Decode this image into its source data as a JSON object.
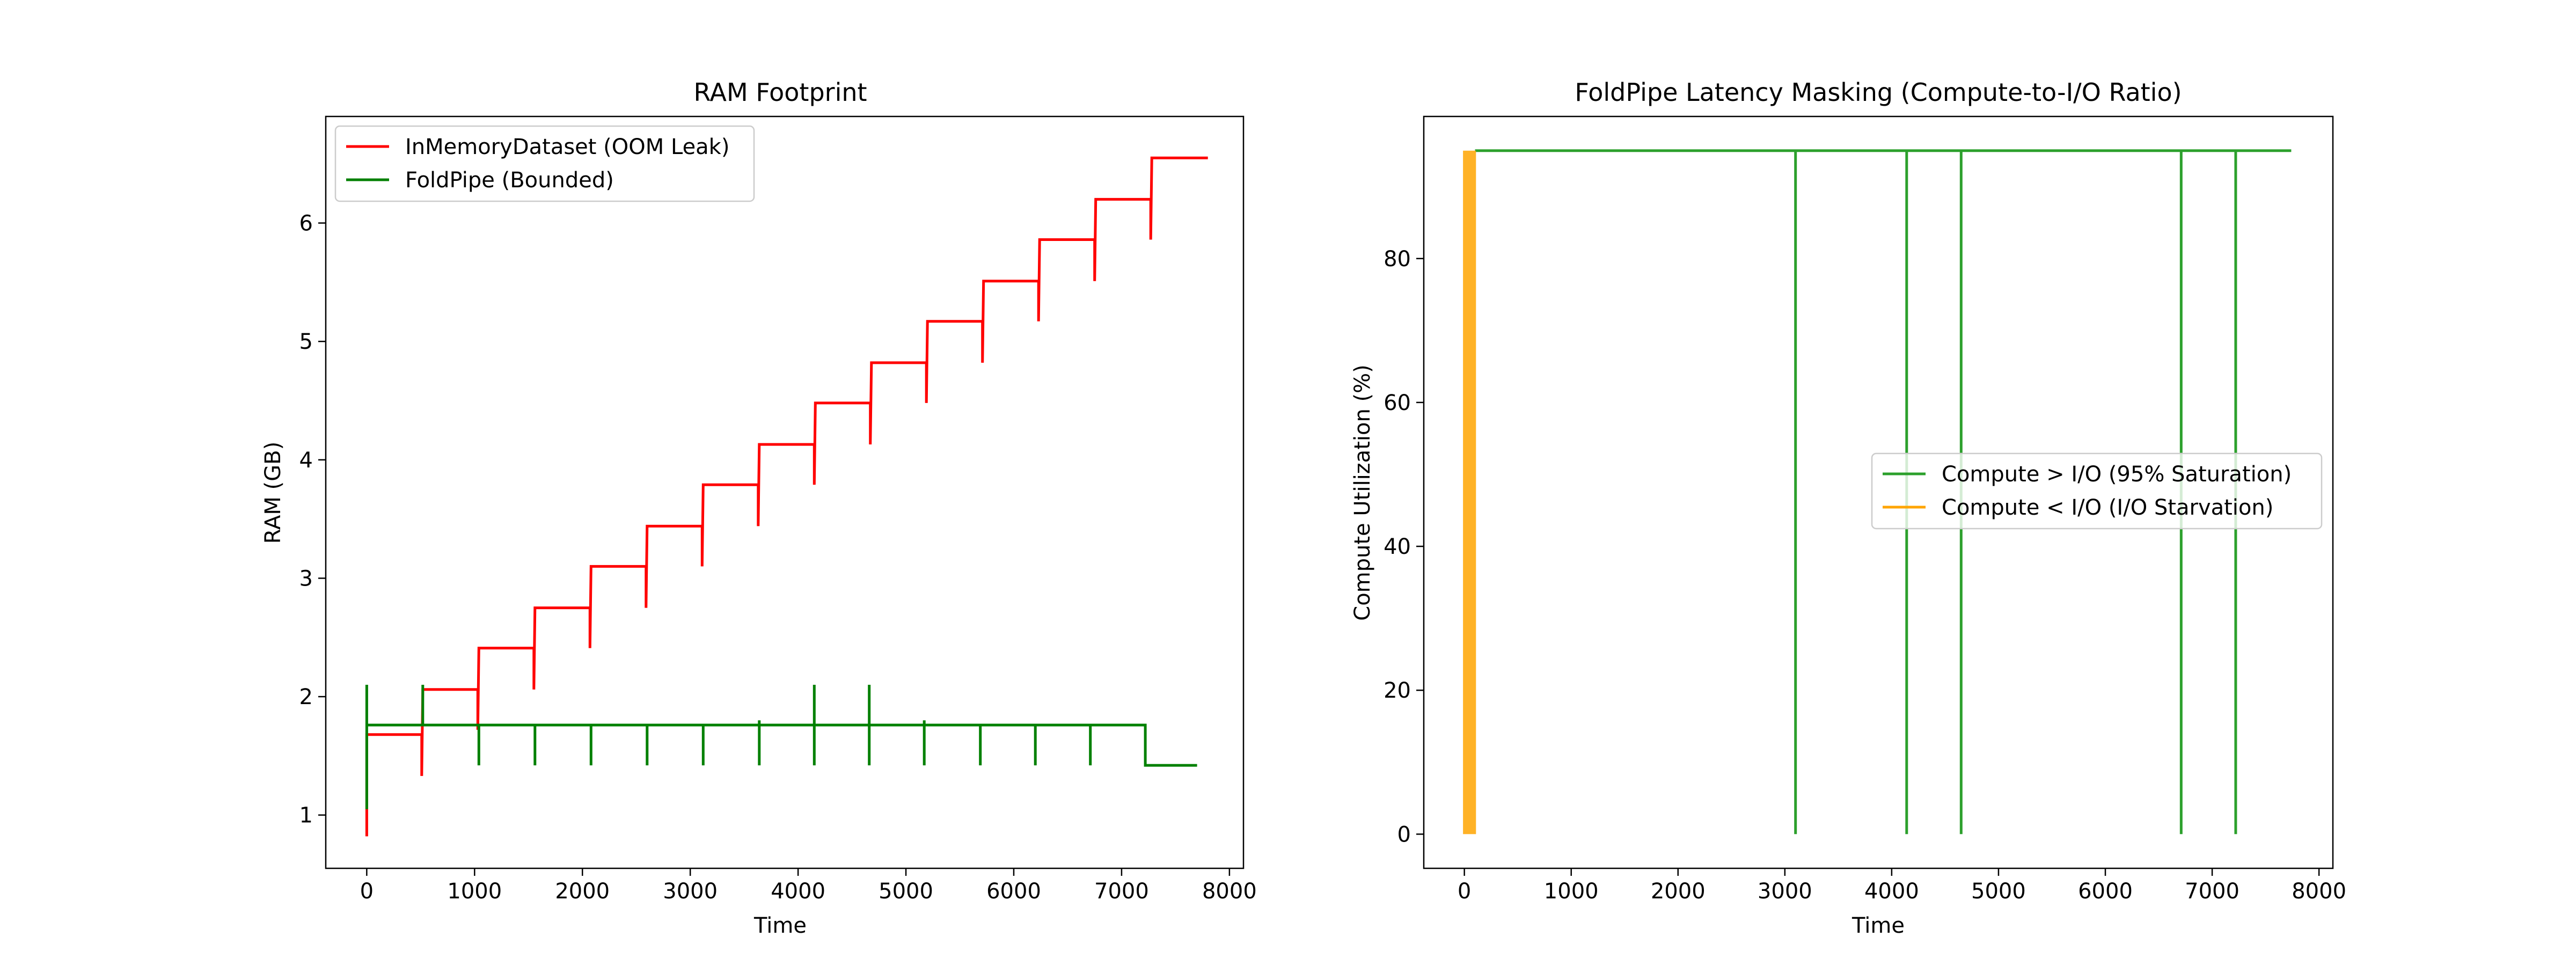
{
  "chart_data": [
    {
      "type": "line",
      "title": "RAM Footprint",
      "xlabel": "Time",
      "ylabel": "RAM (GB)",
      "xlim": [
        -380,
        8130
      ],
      "ylim": [
        0.55,
        6.9
      ],
      "xticks": [
        "0",
        "1000",
        "2000",
        "3000",
        "4000",
        "5000",
        "6000",
        "7000",
        "8000"
      ],
      "yticks": [
        "1",
        "2",
        "3",
        "4",
        "5",
        "6"
      ],
      "legend_position": "upper left",
      "grid": false,
      "series": [
        {
          "name": "InMemoryDataset (OOM Leak)",
          "color": "#ff0000",
          "points": [
            [
              0,
              0.82
            ],
            [
              0,
              1.68
            ],
            [
              510,
              1.68
            ],
            [
              510,
              1.33
            ],
            [
              520,
              2.06
            ],
            [
              1030,
              2.06
            ],
            [
              1030,
              1.72
            ],
            [
              1040,
              2.41
            ],
            [
              1550,
              2.41
            ],
            [
              1550,
              2.06
            ],
            [
              1560,
              2.75
            ],
            [
              2070,
              2.75
            ],
            [
              2070,
              2.41
            ],
            [
              2080,
              3.1
            ],
            [
              2590,
              3.1
            ],
            [
              2590,
              2.75
            ],
            [
              2600,
              3.44
            ],
            [
              3110,
              3.44
            ],
            [
              3110,
              3.1
            ],
            [
              3120,
              3.79
            ],
            [
              3630,
              3.79
            ],
            [
              3630,
              3.44
            ],
            [
              3640,
              4.13
            ],
            [
              4150,
              4.13
            ],
            [
              4150,
              3.79
            ],
            [
              4160,
              4.48
            ],
            [
              4670,
              4.48
            ],
            [
              4670,
              4.13
            ],
            [
              4680,
              4.82
            ],
            [
              5190,
              4.82
            ],
            [
              5190,
              4.48
            ],
            [
              5200,
              5.17
            ],
            [
              5710,
              5.17
            ],
            [
              5710,
              4.82
            ],
            [
              5720,
              5.51
            ],
            [
              6230,
              5.51
            ],
            [
              6230,
              5.17
            ],
            [
              6240,
              5.86
            ],
            [
              6750,
              5.86
            ],
            [
              6750,
              5.51
            ],
            [
              6760,
              6.2
            ],
            [
              7270,
              6.2
            ],
            [
              7270,
              5.86
            ],
            [
              7280,
              6.55
            ],
            [
              7800,
              6.55
            ]
          ]
        },
        {
          "name": "FoldPipe (Bounded)",
          "color": "#008000",
          "points": [
            [
              0,
              1.05
            ],
            [
              0,
              2.1
            ],
            [
              0,
              1.76
            ],
            [
              520,
              1.76
            ],
            [
              520,
              2.1
            ],
            [
              520,
              1.76
            ],
            [
              1040,
              1.76
            ],
            [
              1040,
              1.42
            ],
            [
              1040,
              1.76
            ],
            [
              1560,
              1.76
            ],
            [
              1560,
              1.42
            ],
            [
              1560,
              1.76
            ],
            [
              2080,
              1.76
            ],
            [
              2080,
              1.42
            ],
            [
              2080,
              1.76
            ],
            [
              2600,
              1.76
            ],
            [
              2600,
              1.42
            ],
            [
              2600,
              1.76
            ],
            [
              3120,
              1.76
            ],
            [
              3120,
              1.42
            ],
            [
              3120,
              1.76
            ],
            [
              3640,
              1.76
            ],
            [
              3640,
              1.42
            ],
            [
              3640,
              1.8
            ],
            [
              3640,
              1.76
            ],
            [
              4150,
              1.76
            ],
            [
              4150,
              1.42
            ],
            [
              4150,
              2.1
            ],
            [
              4150,
              1.76
            ],
            [
              4660,
              1.76
            ],
            [
              4660,
              1.42
            ],
            [
              4660,
              2.1
            ],
            [
              4660,
              1.76
            ],
            [
              5170,
              1.76
            ],
            [
              5170,
              1.42
            ],
            [
              5170,
              1.8
            ],
            [
              5170,
              1.76
            ],
            [
              5690,
              1.76
            ],
            [
              5690,
              1.42
            ],
            [
              5690,
              1.76
            ],
            [
              6200,
              1.76
            ],
            [
              6200,
              1.42
            ],
            [
              6200,
              1.76
            ],
            [
              6710,
              1.76
            ],
            [
              6710,
              1.42
            ],
            [
              6710,
              1.76
            ],
            [
              7220,
              1.76
            ],
            [
              7220,
              1.42
            ],
            [
              7700,
              1.42
            ]
          ]
        }
      ]
    },
    {
      "type": "line",
      "title": "FoldPipe Latency Masking (Compute-to-I/O Ratio)",
      "xlabel": "Time",
      "ylabel": "Compute Utilization (%)",
      "xlim": [
        -380,
        8130
      ],
      "ylim": [
        -4.75,
        99.75
      ],
      "xticks": [
        "0",
        "1000",
        "2000",
        "3000",
        "4000",
        "5000",
        "6000",
        "7000",
        "8000"
      ],
      "yticks": [
        "0",
        "20",
        "40",
        "60",
        "80"
      ],
      "legend_position": "center right",
      "grid": false,
      "series": [
        {
          "name": "Compute > I/O (95% Saturation)",
          "color": "#2ca02c",
          "points": [
            [
              100,
              95
            ],
            [
              3100,
              95
            ],
            [
              3100,
              0
            ],
            [
              3100,
              95
            ],
            [
              4140,
              95
            ],
            [
              4140,
              0
            ],
            [
              4140,
              95
            ],
            [
              4650,
              95
            ],
            [
              4650,
              0
            ],
            [
              4650,
              95
            ],
            [
              6710,
              95
            ],
            [
              6710,
              0
            ],
            [
              6710,
              95
            ],
            [
              7220,
              95
            ],
            [
              7220,
              0
            ],
            [
              7220,
              95
            ],
            [
              7740,
              95
            ]
          ]
        },
        {
          "name": "Compute < I/O (I/O Starvation)",
          "color": "#ffa500",
          "points": [
            [
              0,
              0
            ],
            [
              0,
              95
            ],
            [
              8,
              0
            ],
            [
              8,
              95
            ],
            [
              16,
              0
            ],
            [
              16,
              95
            ],
            [
              24,
              0
            ],
            [
              24,
              95
            ],
            [
              32,
              0
            ],
            [
              32,
              95
            ],
            [
              40,
              0
            ],
            [
              40,
              95
            ],
            [
              48,
              0
            ],
            [
              48,
              95
            ],
            [
              56,
              0
            ],
            [
              56,
              95
            ],
            [
              64,
              0
            ],
            [
              64,
              95
            ],
            [
              72,
              0
            ],
            [
              72,
              95
            ],
            [
              80,
              0
            ],
            [
              80,
              95
            ],
            [
              88,
              0
            ],
            [
              88,
              95
            ],
            [
              96,
              0
            ],
            [
              96,
              95
            ]
          ]
        }
      ]
    }
  ]
}
